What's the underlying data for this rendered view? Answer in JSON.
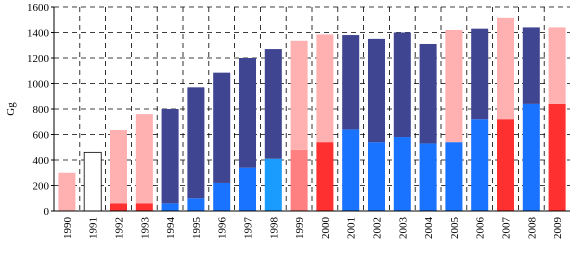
{
  "chart_data": {
    "type": "bar",
    "stacked": true,
    "y_label": "Gg",
    "categories": [
      "1990",
      "1991",
      "1992",
      "1993",
      "1994",
      "1995",
      "1996",
      "1997",
      "1998",
      "1999",
      "2000",
      "2001",
      "2002",
      "2003",
      "2004",
      "2005",
      "2006",
      "2007",
      "2008",
      "2009"
    ],
    "series": [
      {
        "values": [
          null,
          null,
          60,
          60,
          60,
          100,
          220,
          340,
          410,
          480,
          540,
          640,
          540,
          580,
          530,
          540,
          720,
          720,
          840,
          840
        ],
        "colors": [
          "#ff3030",
          "#ff3030",
          "#ff3030",
          "#ff3030",
          "#1a73ff",
          "#1a73ff",
          "#1a73ff",
          "#1a73ff",
          "#1a9cff",
          "#ff8080",
          "#ff3030",
          "#1a73ff",
          "#1a73ff",
          "#1a73ff",
          "#1a73ff",
          "#1a73ff",
          "#1a73ff",
          "#ff3030",
          "#1a73ff",
          "#ff3030"
        ]
      },
      {
        "values": [
          300,
          460,
          575,
          700,
          740,
          870,
          865,
          860,
          860,
          855,
          845,
          740,
          810,
          820,
          780,
          880,
          710,
          795,
          600,
          600
        ],
        "colors": [
          "#ffb0b0",
          "#ffffff",
          "#ffb0b0",
          "#ffb0b0",
          "#3f4590",
          "#3f4590",
          "#3f4590",
          "#3f4590",
          "#3f4590",
          "#ffb0b0",
          "#ffb0b0",
          "#3f4590",
          "#3f4590",
          "#3f4590",
          "#3f4590",
          "#ffb0b0",
          "#3f4590",
          "#ffb0b0",
          "#3f4590",
          "#ffb0b0"
        ]
      }
    ],
    "ylim": [
      0,
      1600
    ],
    "yticks": [
      0,
      200,
      400,
      600,
      800,
      1000,
      1200,
      1400,
      1600
    ],
    "grid": true
  }
}
